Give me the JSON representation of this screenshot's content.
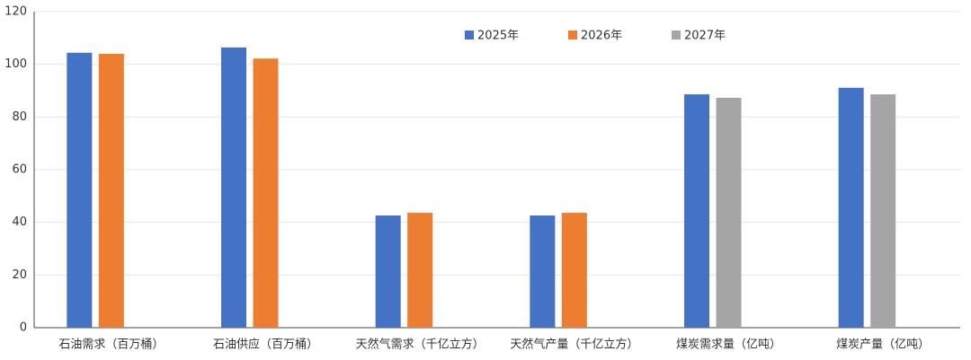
{
  "chart_data": {
    "type": "bar",
    "categories": [
      "石油需求（百万桶）",
      "石油供应（百万桶）",
      "天然气需求（千亿立方）",
      "天然气产量（千亿立方）",
      "煤炭需求量（亿吨）",
      "煤炭产量（亿吨）"
    ],
    "series": [
      {
        "name": "2025年",
        "color": "#4472c4",
        "values": [
          104.4,
          106.4,
          42.6,
          42.6,
          88.6,
          91.1
        ]
      },
      {
        "name": "2026年",
        "color": "#ed7d31",
        "values": [
          104,
          102.2,
          43.6,
          43.6,
          null,
          null
        ]
      },
      {
        "name": "2027年",
        "color": "#a5a5a5",
        "values": [
          null,
          null,
          null,
          null,
          87.3,
          88.6
        ]
      }
    ],
    "ylim": [
      0,
      120
    ],
    "yticks": [
      0,
      20,
      40,
      60,
      80,
      100,
      120
    ],
    "grid": true
  }
}
